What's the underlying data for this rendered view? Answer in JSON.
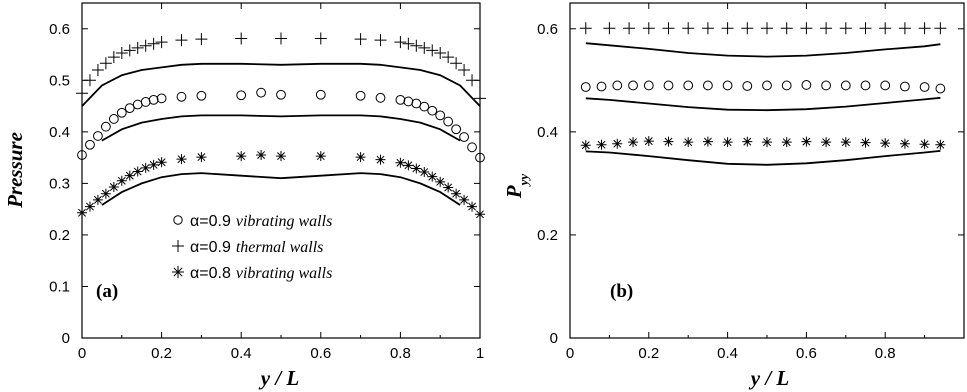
{
  "chart_data": [
    {
      "type": "scatter",
      "panel_label": "(a)",
      "xlabel": "y / L",
      "ylabel": "Pressure",
      "xlim": [
        0,
        1
      ],
      "ylim": [
        0,
        0.65
      ],
      "xticks": [
        "0",
        "0.2",
        "0.4",
        "0.6",
        "0.8",
        "1"
      ],
      "yticks": [
        "0",
        "0.1",
        "0.2",
        "0.3",
        "0.4",
        "0.5",
        "0.6"
      ],
      "legend": {
        "position": "center",
        "entries": [
          {
            "marker": "circle",
            "symbol": "○",
            "alpha_text": "α=0.9",
            "rest_text": "vibrating walls"
          },
          {
            "marker": "plus",
            "symbol": "+",
            "alpha_text": "α=0.9",
            "rest_text": "thermal walls"
          },
          {
            "marker": "star",
            "symbol": "✱",
            "alpha_text": "α=0.8",
            "rest_text": "vibrating walls"
          }
        ]
      },
      "series": [
        {
          "name": "α=0.9 thermal walls",
          "marker": "plus",
          "x": [
            0.0,
            0.02,
            0.04,
            0.06,
            0.08,
            0.1,
            0.12,
            0.14,
            0.16,
            0.18,
            0.2,
            0.25,
            0.3,
            0.4,
            0.5,
            0.6,
            0.7,
            0.75,
            0.8,
            0.82,
            0.84,
            0.86,
            0.88,
            0.9,
            0.92,
            0.94,
            0.96,
            0.98,
            1.0
          ],
          "y": [
            0.475,
            0.5,
            0.52,
            0.533,
            0.545,
            0.553,
            0.558,
            0.563,
            0.567,
            0.571,
            0.574,
            0.578,
            0.58,
            0.581,
            0.581,
            0.581,
            0.58,
            0.578,
            0.574,
            0.571,
            0.567,
            0.563,
            0.558,
            0.553,
            0.545,
            0.533,
            0.52,
            0.5,
            0.465
          ]
        },
        {
          "name": "α=0.9 vibrating walls",
          "marker": "circle",
          "x": [
            0.0,
            0.02,
            0.04,
            0.06,
            0.08,
            0.1,
            0.12,
            0.14,
            0.16,
            0.18,
            0.2,
            0.25,
            0.3,
            0.4,
            0.45,
            0.5,
            0.6,
            0.7,
            0.75,
            0.8,
            0.82,
            0.84,
            0.86,
            0.88,
            0.9,
            0.92,
            0.94,
            0.96,
            0.98,
            1.0
          ],
          "y": [
            0.355,
            0.375,
            0.392,
            0.41,
            0.425,
            0.437,
            0.446,
            0.453,
            0.458,
            0.462,
            0.465,
            0.468,
            0.47,
            0.471,
            0.476,
            0.472,
            0.472,
            0.47,
            0.466,
            0.462,
            0.459,
            0.455,
            0.449,
            0.441,
            0.432,
            0.42,
            0.405,
            0.39,
            0.37,
            0.35
          ]
        },
        {
          "name": "α=0.8 vibrating walls",
          "marker": "star",
          "x": [
            0.0,
            0.02,
            0.04,
            0.06,
            0.08,
            0.1,
            0.12,
            0.14,
            0.16,
            0.18,
            0.2,
            0.25,
            0.3,
            0.4,
            0.45,
            0.5,
            0.6,
            0.7,
            0.75,
            0.8,
            0.82,
            0.84,
            0.86,
            0.88,
            0.9,
            0.92,
            0.94,
            0.96,
            0.98,
            1.0
          ],
          "y": [
            0.243,
            0.255,
            0.268,
            0.28,
            0.293,
            0.305,
            0.315,
            0.323,
            0.33,
            0.336,
            0.341,
            0.347,
            0.351,
            0.353,
            0.355,
            0.353,
            0.353,
            0.351,
            0.346,
            0.34,
            0.335,
            0.329,
            0.322,
            0.313,
            0.303,
            0.292,
            0.28,
            0.268,
            0.255,
            0.24
          ]
        },
        {
          "name": "",
          "marker": "line",
          "x": [
            0.0,
            0.05,
            0.1,
            0.15,
            0.2,
            0.25,
            0.3,
            0.4,
            0.5,
            0.6,
            0.7,
            0.75,
            0.8,
            0.85,
            0.9,
            0.95,
            1.0
          ],
          "y": [
            0.45,
            0.49,
            0.51,
            0.52,
            0.525,
            0.53,
            0.532,
            0.532,
            0.53,
            0.532,
            0.532,
            0.53,
            0.525,
            0.52,
            0.51,
            0.49,
            0.45
          ]
        },
        {
          "name": "",
          "marker": "line",
          "x": [
            0.05,
            0.1,
            0.15,
            0.2,
            0.25,
            0.3,
            0.4,
            0.5,
            0.6,
            0.7,
            0.75,
            0.8,
            0.85,
            0.9,
            0.95
          ],
          "y": [
            0.383,
            0.405,
            0.418,
            0.425,
            0.43,
            0.432,
            0.432,
            0.43,
            0.432,
            0.432,
            0.43,
            0.425,
            0.418,
            0.405,
            0.383
          ]
        },
        {
          "name": "",
          "marker": "line",
          "x": [
            0.05,
            0.1,
            0.15,
            0.2,
            0.25,
            0.3,
            0.4,
            0.5,
            0.6,
            0.7,
            0.75,
            0.8,
            0.85,
            0.9,
            0.95
          ],
          "y": [
            0.258,
            0.283,
            0.3,
            0.312,
            0.318,
            0.32,
            0.315,
            0.31,
            0.315,
            0.32,
            0.318,
            0.312,
            0.3,
            0.283,
            0.258
          ]
        }
      ]
    },
    {
      "type": "scatter",
      "panel_label": "(b)",
      "xlabel": "y / L",
      "ylabel": "P",
      "ylabel_sub": "yy",
      "xlim": [
        0,
        1
      ],
      "ylim": [
        0,
        0.65
      ],
      "xticks": [
        "0",
        "0.2",
        "0.4",
        "0.6",
        "0.8"
      ],
      "yticks": [
        "0",
        "0.2",
        "0.4",
        "0.6"
      ],
      "series": [
        {
          "name": "α=0.9 thermal walls",
          "marker": "plus",
          "x": [
            0.04,
            0.1,
            0.15,
            0.2,
            0.25,
            0.3,
            0.35,
            0.4,
            0.45,
            0.5,
            0.55,
            0.6,
            0.65,
            0.7,
            0.75,
            0.8,
            0.85,
            0.9,
            0.94
          ],
          "y": [
            0.601,
            0.601,
            0.601,
            0.601,
            0.601,
            0.601,
            0.601,
            0.601,
            0.601,
            0.601,
            0.601,
            0.601,
            0.601,
            0.601,
            0.601,
            0.601,
            0.601,
            0.601,
            0.601
          ]
        },
        {
          "name": "α=0.9 vibrating walls",
          "marker": "circle",
          "x": [
            0.04,
            0.08,
            0.12,
            0.16,
            0.2,
            0.25,
            0.3,
            0.35,
            0.4,
            0.45,
            0.5,
            0.55,
            0.6,
            0.65,
            0.7,
            0.75,
            0.8,
            0.85,
            0.9,
            0.94
          ],
          "y": [
            0.487,
            0.488,
            0.49,
            0.49,
            0.49,
            0.49,
            0.49,
            0.49,
            0.49,
            0.489,
            0.49,
            0.49,
            0.491,
            0.49,
            0.49,
            0.49,
            0.49,
            0.488,
            0.487,
            0.484
          ]
        },
        {
          "name": "α=0.8 vibrating walls",
          "marker": "star",
          "x": [
            0.04,
            0.08,
            0.12,
            0.16,
            0.2,
            0.25,
            0.3,
            0.35,
            0.4,
            0.45,
            0.5,
            0.55,
            0.6,
            0.65,
            0.7,
            0.75,
            0.8,
            0.85,
            0.9,
            0.94
          ],
          "y": [
            0.374,
            0.375,
            0.377,
            0.38,
            0.382,
            0.381,
            0.38,
            0.381,
            0.38,
            0.381,
            0.38,
            0.38,
            0.381,
            0.38,
            0.38,
            0.379,
            0.378,
            0.377,
            0.376,
            0.375
          ]
        },
        {
          "name": "",
          "marker": "line",
          "x": [
            0.04,
            0.1,
            0.2,
            0.3,
            0.4,
            0.5,
            0.6,
            0.7,
            0.8,
            0.9,
            0.94
          ],
          "y": [
            0.572,
            0.568,
            0.561,
            0.553,
            0.548,
            0.546,
            0.548,
            0.553,
            0.56,
            0.566,
            0.57
          ]
        },
        {
          "name": "",
          "marker": "line",
          "x": [
            0.04,
            0.1,
            0.2,
            0.3,
            0.4,
            0.5,
            0.6,
            0.7,
            0.8,
            0.9,
            0.94
          ],
          "y": [
            0.465,
            0.462,
            0.455,
            0.448,
            0.443,
            0.442,
            0.444,
            0.449,
            0.456,
            0.463,
            0.466
          ]
        },
        {
          "name": "",
          "marker": "line",
          "x": [
            0.04,
            0.1,
            0.2,
            0.3,
            0.4,
            0.5,
            0.6,
            0.7,
            0.8,
            0.9,
            0.94
          ],
          "y": [
            0.362,
            0.36,
            0.353,
            0.345,
            0.338,
            0.336,
            0.339,
            0.345,
            0.353,
            0.36,
            0.363
          ]
        }
      ]
    }
  ]
}
